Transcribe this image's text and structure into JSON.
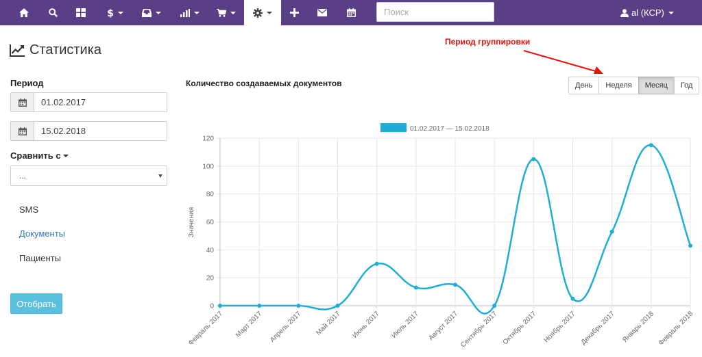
{
  "nav": {
    "items": [
      {
        "name": "home-icon",
        "caret": false
      },
      {
        "name": "search-icon",
        "caret": false
      },
      {
        "name": "dashboard-icon",
        "caret": false
      },
      {
        "name": "dollar-icon",
        "caret": true
      },
      {
        "name": "inbox-icon",
        "caret": true
      },
      {
        "name": "stats-icon",
        "caret": true
      },
      {
        "name": "cart-icon",
        "caret": true
      },
      {
        "name": "gear-icon",
        "caret": true,
        "active": true
      },
      {
        "name": "plus-icon",
        "caret": false
      },
      {
        "name": "envelope-icon",
        "caret": false
      },
      {
        "name": "calendar-icon",
        "caret": false
      }
    ],
    "search_placeholder": "Поиск",
    "user_label": "al  (КСР)"
  },
  "page": {
    "title": "Статистика"
  },
  "filters": {
    "period_label": "Период",
    "date_from": "01.02.2017",
    "date_to": "15.02.2018",
    "compare_label": "Сравнить с",
    "compare_value": "..."
  },
  "sidebar": {
    "items": [
      {
        "label": "SMS",
        "active": false
      },
      {
        "label": "Документы",
        "active": true
      },
      {
        "label": "Пациенты",
        "active": false
      }
    ],
    "apply_label": "Отобрать"
  },
  "annotation": "Период группировки",
  "period_buttons": [
    {
      "label": "День",
      "active": false
    },
    {
      "label": "Неделя",
      "active": false
    },
    {
      "label": "Месяц",
      "active": true
    },
    {
      "label": "Год",
      "active": false
    }
  ],
  "colors": {
    "nav_bg": "#5b3f86",
    "series": "#1eaed5",
    "annotation": "#e8140c"
  },
  "chart_data": {
    "type": "line",
    "title": "Количество создаваемых документов",
    "ylabel": "Значения",
    "xlabel": "",
    "ylim": [
      0,
      120
    ],
    "yticks": [
      0,
      20,
      40,
      60,
      80,
      100,
      120
    ],
    "grid": true,
    "legend_position": "top",
    "categories": [
      "Февраль 2017",
      "Март 2017",
      "Апрель 2017",
      "Май 2017",
      "Июнь 2017",
      "Июль 2017",
      "Август 2017",
      "Сентябрь 2017",
      "Октябрь 2017",
      "Ноябрь 2017",
      "Декабрь 2017",
      "Январь 2018",
      "Февраль 2018"
    ],
    "series": [
      {
        "name": "01.02.2017 — 15.02.2018",
        "values": [
          0,
          0,
          0,
          0,
          30,
          13,
          15,
          0,
          105,
          5,
          53,
          115,
          43
        ]
      }
    ]
  }
}
